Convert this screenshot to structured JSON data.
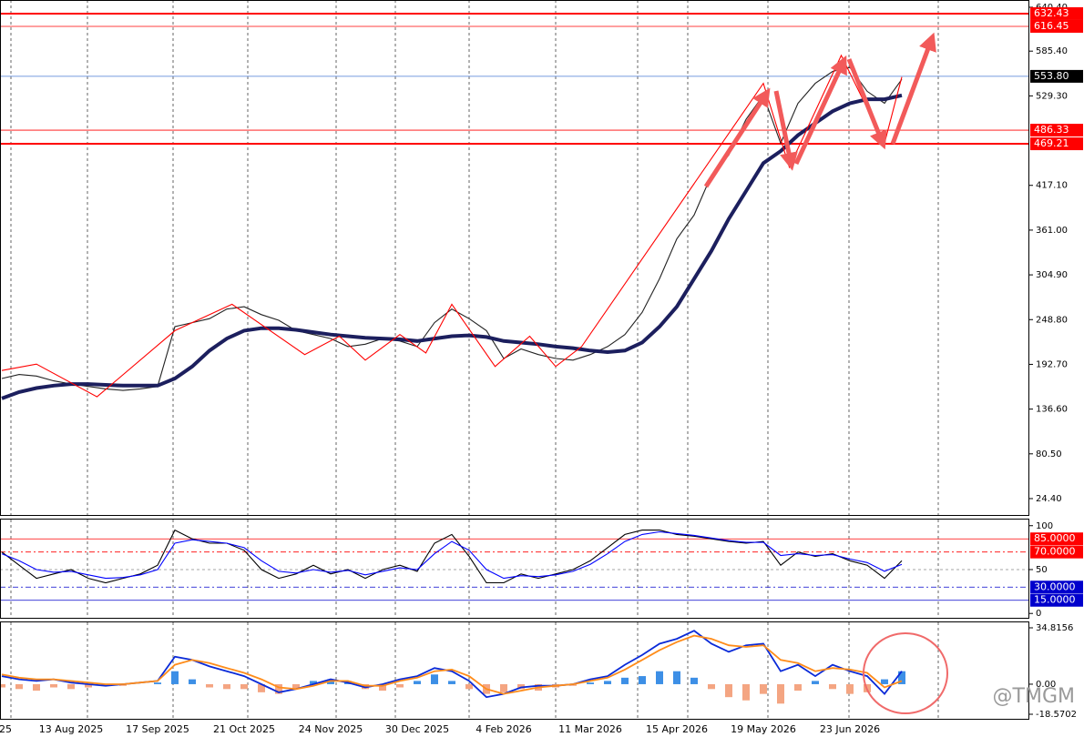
{
  "chart_data": [
    {
      "type": "line",
      "categories": [
        "25",
        null,
        null,
        null,
        "13 Aug 2025",
        null,
        null,
        null,
        null,
        "17 Sep 2025",
        null,
        null,
        null,
        null,
        "21 Oct 2025",
        null,
        null,
        null,
        null,
        "24 Nov 2025",
        null,
        null,
        null,
        null,
        "30 Dec 2025",
        null,
        null,
        null,
        null,
        "4 Feb 2026",
        null,
        null,
        null,
        null,
        "11 Mar 2026",
        null,
        null,
        null,
        null,
        "15 Apr 2026",
        null,
        null,
        null,
        null,
        "19 May 2026",
        null,
        null,
        null,
        null,
        "23 Jun 2026",
        null,
        null,
        null
      ],
      "ylim": [
        2.7,
        649.5
      ],
      "yticks": [
        {
          "value": 640.4,
          "label": "640.40"
        },
        {
          "value": 585.4,
          "label": "585.40"
        },
        {
          "value": 529.3,
          "label": "529.30"
        },
        {
          "value": 417.1,
          "label": "417.10"
        },
        {
          "value": 361,
          "label": "361.00"
        },
        {
          "value": 304.9,
          "label": "304.90"
        },
        {
          "value": 248.8,
          "label": "248.80"
        },
        {
          "value": 192.7,
          "label": "192.70"
        },
        {
          "value": 136.6,
          "label": "136.60"
        },
        {
          "value": 80.5,
          "label": "80.50"
        },
        {
          "value": 24.4,
          "label": "24.40"
        }
      ],
      "levels": [
        632.43,
        616.45,
        {
          "value": 553.8,
          "label": "553.80"
        },
        486.33,
        469.21
      ],
      "level_colors": [
        "#ff0000",
        "#ff0000",
        "#4a7bd6",
        "#ff0000",
        "#ff0000"
      ],
      "series": [
        {
          "color": "#222222",
          "values": [
            175,
            180,
            178,
            172,
            168,
            165,
            162,
            160,
            162,
            165,
            240,
            245,
            250,
            262,
            265,
            255,
            248,
            235,
            230,
            225,
            215,
            218,
            225,
            222,
            215,
            245,
            262,
            250,
            235,
            200,
            212,
            205,
            200,
            198,
            205,
            215,
            230,
            258,
            300,
            350,
            380,
            430,
            455,
            500,
            530,
            470,
            520,
            545,
            560,
            565,
            535,
            520,
            550
          ]
        },
        {
          "color": "#1c1f5e",
          "values": [
            150,
            158,
            163,
            166,
            168,
            168,
            167,
            166,
            166,
            166,
            175,
            190,
            210,
            225,
            235,
            238,
            238,
            236,
            233,
            230,
            228,
            226,
            225,
            224,
            222,
            225,
            228,
            229,
            227,
            222,
            220,
            218,
            215,
            213,
            210,
            208,
            210,
            220,
            240,
            265,
            300,
            335,
            375,
            410,
            445,
            460,
            480,
            495,
            510,
            520,
            525,
            525,
            530
          ]
        },
        {
          "color": "#ff0000",
          "x": [
            0,
            2,
            5.5,
            10,
            13.3,
            17.5,
            19.5,
            21,
            23,
            24.5,
            26,
            28.5,
            30.5,
            32,
            33.5,
            44,
            45.5,
            48.5,
            51,
            52
          ],
          "values": [
            185,
            193,
            152,
            235,
            268,
            205,
            228,
            198,
            230,
            207,
            268,
            190,
            228,
            190,
            215,
            545,
            440,
            580,
            470,
            553
          ]
        }
      ],
      "watermark": "@TMGM"
    },
    {
      "type": "line",
      "ylim": [
        -6,
        107
      ],
      "yticks": [
        100,
        50,
        0
      ],
      "levels": [
        {
          "value": 85,
          "label": "85.0000"
        },
        {
          "value": 70,
          "label": "70.0000"
        },
        50,
        {
          "value": 30,
          "label": "30.0000"
        },
        {
          "value": 15,
          "label": "15.0000"
        }
      ],
      "level_colors": [
        "#ff0000",
        "#ff0000",
        "#888888",
        "#0000cc",
        "#0000cc"
      ],
      "series": [
        {
          "color": "#000000",
          "values": [
            70,
            55,
            40,
            45,
            50,
            40,
            35,
            40,
            45,
            55,
            95,
            85,
            80,
            80,
            72,
            50,
            40,
            45,
            55,
            45,
            50,
            40,
            50,
            55,
            48,
            80,
            90,
            65,
            35,
            35,
            45,
            40,
            45,
            50,
            60,
            75,
            90,
            95,
            95,
            90,
            88,
            85,
            82,
            80,
            82,
            55,
            70,
            65,
            68,
            60,
            55,
            40,
            60
          ]
        },
        {
          "color": "#0000ff",
          "values": [
            68,
            60,
            50,
            47,
            48,
            44,
            40,
            41,
            44,
            50,
            80,
            84,
            82,
            80,
            75,
            60,
            48,
            46,
            50,
            47,
            49,
            44,
            48,
            52,
            50,
            68,
            82,
            72,
            50,
            40,
            43,
            42,
            44,
            48,
            56,
            68,
            82,
            90,
            93,
            91,
            89,
            86,
            83,
            81,
            81,
            66,
            68,
            66,
            67,
            62,
            58,
            48,
            56
          ]
        }
      ]
    },
    {
      "type": "bar",
      "ylim": [
        -21.38,
        38.19
      ],
      "yticks": [
        34.8156,
        {
          "value": 0,
          "label": "0.00"
        },
        -18.5702
      ],
      "pos_color": "#3d8fe6",
      "neg_color": "#f4a582",
      "values": [
        -2,
        -3,
        -4,
        -2,
        -3,
        -2,
        -1,
        -1,
        0,
        1,
        8,
        3,
        -2,
        -3,
        -3,
        -5,
        -6,
        -3,
        2,
        3,
        2,
        -3,
        -4,
        -2,
        2,
        6,
        2,
        -3,
        -6,
        -5,
        -3,
        -4,
        -2,
        -1,
        1,
        2,
        4,
        5,
        8,
        8,
        4,
        -3,
        -8,
        -10,
        -6,
        -12,
        -4,
        2,
        -3,
        -6,
        -5,
        3,
        8
      ],
      "series": [
        {
          "color": "#0a2ad8",
          "values": [
            5,
            3,
            2,
            3,
            1,
            0,
            -1,
            0,
            1,
            2,
            17,
            15,
            11,
            8,
            5,
            0,
            -5,
            -3,
            0,
            3,
            1,
            -2,
            0,
            3,
            5,
            10,
            8,
            2,
            -8,
            -6,
            -2,
            -1,
            -1,
            0,
            3,
            5,
            12,
            18,
            25,
            28,
            33,
            25,
            20,
            24,
            25,
            8,
            12,
            5,
            12,
            8,
            5,
            -6,
            8
          ]
        },
        {
          "color": "#ff8c1a",
          "values": [
            6,
            4,
            3,
            3,
            2,
            1,
            0,
            0,
            1,
            2,
            12,
            15,
            13,
            10,
            7,
            3,
            -2,
            -3,
            -1,
            2,
            2,
            -1,
            -1,
            2,
            4,
            8,
            9,
            5,
            -3,
            -6,
            -4,
            -2,
            -1,
            0,
            2,
            4,
            9,
            15,
            21,
            26,
            30,
            28,
            24,
            23,
            24,
            15,
            13,
            8,
            10,
            9,
            7,
            -2,
            2
          ]
        }
      ]
    }
  ]
}
